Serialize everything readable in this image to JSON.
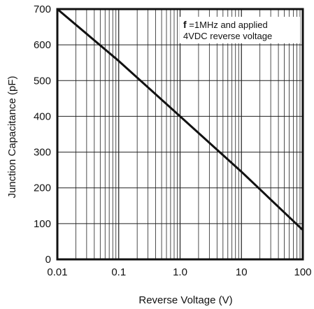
{
  "chart_data": {
    "type": "line",
    "xlabel": "Reverse Voltage (V)",
    "ylabel": "Junction Capacitance  (pF)",
    "x_scale": "log",
    "xlim": [
      0.01,
      100
    ],
    "ylim": [
      0,
      700
    ],
    "x_tick_labels": [
      "0.01",
      "0.1",
      "1.0",
      "10",
      "100"
    ],
    "y_tick_labels": [
      "0",
      "100",
      "200",
      "300",
      "400",
      "500",
      "600",
      "700"
    ],
    "grid": true,
    "series": [
      {
        "x": [
          0.01,
          0.1,
          1.0,
          10,
          100
        ],
        "y": [
          700,
          555,
          400,
          245,
          82
        ]
      }
    ],
    "annotation": {
      "symbol": "f",
      "line1": "=1MHz and applied",
      "line2": "4VDC reverse voltage"
    },
    "line_color": "#111111",
    "grid_color": "#222222"
  }
}
